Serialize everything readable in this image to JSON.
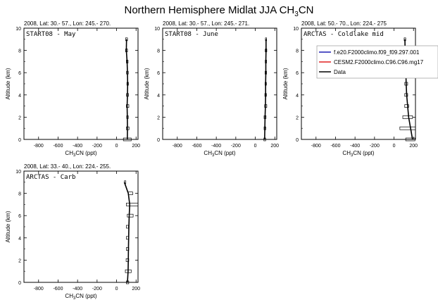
{
  "figure": {
    "title_main": "Northern Hemisphere Midlat JJA CH",
    "title_sub": "3",
    "title_end": "CN"
  },
  "axes_common": {
    "xlabel_main": "CH",
    "xlabel_sub": "3",
    "xlabel_end": "CN (ppt)",
    "ylabel": "Altitude (km)",
    "xlim": [
      -950,
      220
    ],
    "ylim": [
      0,
      10
    ],
    "xticks": [
      -800,
      -600,
      -400,
      -200,
      0,
      200
    ],
    "yticks": [
      0,
      2,
      4,
      6,
      8,
      10
    ]
  },
  "legend": {
    "entries": [
      {
        "label": "f.e20.F2000climo.f09_f09.297.001",
        "color": "#1f1fb4"
      },
      {
        "label": "CESM2.F2000climo.C96.C96.mg17",
        "color": "#e02020"
      },
      {
        "label": "Data",
        "color": "#000000"
      }
    ]
  },
  "chart_data": [
    {
      "type": "line",
      "header": "2008, Lat:  30.- 57., Lon: 245.- 270.",
      "campaign": "START08 - May",
      "series": [
        {
          "name": "Data",
          "x": [
            110,
            112,
            110,
            108,
            112,
            114,
            112,
            108,
            100,
            102
          ],
          "y": [
            0,
            1,
            2,
            3,
            4,
            5,
            6,
            7,
            8,
            9
          ]
        }
      ],
      "boxes": [
        {
          "alt": 0,
          "lo": 70,
          "hi": 150
        },
        {
          "alt": 1,
          "lo": 100,
          "hi": 128
        },
        {
          "alt": 2,
          "lo": 104,
          "hi": 120
        },
        {
          "alt": 3,
          "lo": 100,
          "hi": 126
        },
        {
          "alt": 4,
          "lo": 102,
          "hi": 122
        },
        {
          "alt": 5,
          "lo": 106,
          "hi": 122
        },
        {
          "alt": 6,
          "lo": 102,
          "hi": 120
        },
        {
          "alt": 7,
          "lo": 100,
          "hi": 118
        },
        {
          "alt": 8,
          "lo": 92,
          "hi": 112
        },
        {
          "alt": 9,
          "lo": 92,
          "hi": 112
        }
      ]
    },
    {
      "type": "line",
      "header": "2008, Lat:  30.- 57., Lon: 245.- 271.",
      "campaign": "START08 - June",
      "series": [
        {
          "name": "Data",
          "x": [
            96,
            98,
            100,
            104,
            106,
            106,
            108,
            108,
            110,
            110
          ],
          "y": [
            0,
            1,
            2,
            3,
            4,
            5,
            6,
            7,
            8,
            9
          ]
        }
      ],
      "boxes": [
        {
          "alt": 0,
          "lo": 88,
          "hi": 106
        },
        {
          "alt": 1,
          "lo": 90,
          "hi": 108
        },
        {
          "alt": 2,
          "lo": 90,
          "hi": 110
        },
        {
          "alt": 3,
          "lo": 96,
          "hi": 118
        },
        {
          "alt": 4,
          "lo": 98,
          "hi": 114
        },
        {
          "alt": 5,
          "lo": 100,
          "hi": 114
        },
        {
          "alt": 6,
          "lo": 100,
          "hi": 116
        },
        {
          "alt": 7,
          "lo": 102,
          "hi": 116
        },
        {
          "alt": 8,
          "lo": 102,
          "hi": 118
        },
        {
          "alt": 9,
          "lo": 104,
          "hi": 116
        }
      ]
    },
    {
      "type": "line",
      "header": "2008, Lat:  50.- 70., Lon: 224.- 275",
      "campaign": "ARCTAS - Coldlake mid",
      "series": [
        {
          "name": "Data",
          "x": [
            190,
            170,
            150,
            140,
            130,
            125,
            122,
            118,
            114,
            112
          ],
          "y": [
            0,
            1,
            2,
            3,
            4,
            5,
            6,
            7,
            8,
            9
          ]
        }
      ],
      "boxes": [
        {
          "alt": 0,
          "lo": 120,
          "hi": 215
        },
        {
          "alt": 1,
          "lo": 60,
          "hi": 240
        },
        {
          "alt": 2,
          "lo": 90,
          "hi": 190
        },
        {
          "alt": 3,
          "lo": 110,
          "hi": 150
        },
        {
          "alt": 4,
          "lo": 110,
          "hi": 140
        },
        {
          "alt": 5,
          "lo": 110,
          "hi": 140
        },
        {
          "alt": 6,
          "lo": 120,
          "hi": 160
        },
        {
          "alt": 7,
          "lo": 108,
          "hi": 130
        },
        {
          "alt": 8,
          "lo": 108,
          "hi": 124
        },
        {
          "alt": 9,
          "lo": 104,
          "hi": 120
        }
      ]
    },
    {
      "type": "line",
      "header": "2008, Lat:  33.- 40., Lon: 224.- 255.",
      "campaign": "ARCTAS - Carb",
      "series": [
        {
          "name": "Data",
          "x": [
            112,
            118,
            120,
            122,
            124,
            126,
            130,
            135,
            120,
            80
          ],
          "y": [
            0,
            1,
            2,
            3,
            4,
            5,
            6,
            7,
            8,
            9
          ]
        }
      ],
      "boxes": [
        {
          "alt": 0,
          "lo": 100,
          "hi": 125
        },
        {
          "alt": 1,
          "lo": 90,
          "hi": 150
        },
        {
          "alt": 2,
          "lo": 98,
          "hi": 125
        },
        {
          "alt": 3,
          "lo": 100,
          "hi": 125
        },
        {
          "alt": 4,
          "lo": 100,
          "hi": 125
        },
        {
          "alt": 5,
          "lo": 100,
          "hi": 122
        },
        {
          "alt": 6,
          "lo": 110,
          "hi": 170
        },
        {
          "alt": 7,
          "lo": 100,
          "hi": 220
        },
        {
          "alt": 8,
          "lo": 120,
          "hi": 165
        },
        {
          "alt": 9,
          "lo": 80,
          "hi": 95
        }
      ]
    }
  ]
}
